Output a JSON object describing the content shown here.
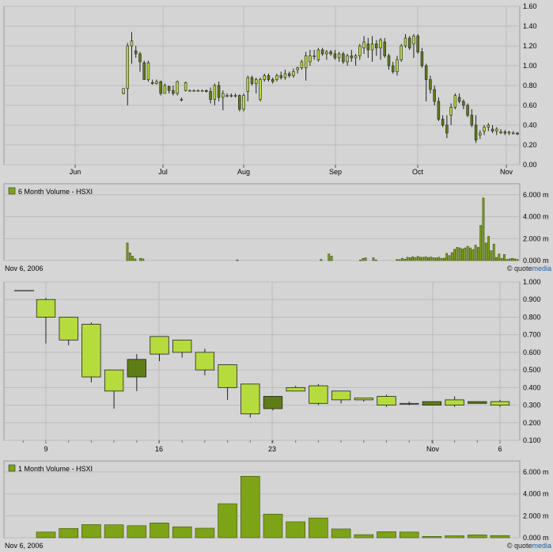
{
  "colors": {
    "background": "#d6d6d6",
    "plot_bg": "#d4d4d4",
    "grid": "#bcbcbc",
    "candle_up": "#b5dc3c",
    "candle_down": "#5f7d16",
    "volume": "#7da416"
  },
  "branding": {
    "quotemedia_prefix": "quote",
    "quotemedia_suffix": "media"
  },
  "chart_data": [
    {
      "type": "candlestick",
      "panel": "6-month price",
      "ylim": [
        0,
        1.6
      ],
      "yticks": [
        "1.60",
        "1.40",
        "1.20",
        "1.00",
        "0.80",
        "0.60",
        "0.40",
        "0.20",
        "0.00"
      ],
      "xticks": [
        "Jun",
        "Jul",
        "Aug",
        "Sep",
        "Oct",
        "Nov"
      ],
      "grid": true,
      "candles": [
        [
          0.72,
          0.77,
          0.71,
          0.77
        ],
        [
          0.77,
          1.23,
          0.6,
          1.2
        ],
        [
          1.2,
          1.34,
          1.02,
          1.25
        ],
        [
          1.15,
          1.2,
          1.08,
          1.12
        ],
        [
          1.12,
          1.14,
          0.94,
          1.04
        ],
        [
          1.03,
          1.05,
          0.86,
          0.86
        ],
        [
          0.86,
          1.05,
          0.84,
          1.03
        ],
        [
          0.83,
          0.86,
          0.81,
          0.82
        ],
        [
          0.82,
          0.86,
          0.81,
          0.84
        ],
        [
          0.84,
          0.85,
          0.7,
          0.72
        ],
        [
          0.72,
          0.82,
          0.72,
          0.8
        ],
        [
          0.79,
          0.8,
          0.72,
          0.75
        ],
        [
          0.75,
          0.8,
          0.7,
          0.72
        ],
        [
          0.72,
          0.85,
          0.7,
          0.84
        ],
        [
          0.66,
          0.68,
          0.64,
          0.66
        ],
        [
          0.75,
          0.84,
          0.74,
          0.83
        ],
        [
          0.75,
          0.76,
          0.74,
          0.75
        ],
        [
          0.75,
          0.76,
          0.74,
          0.75
        ],
        [
          0.75,
          0.76,
          0.74,
          0.75
        ],
        [
          0.75,
          0.76,
          0.74,
          0.75
        ],
        [
          0.75,
          0.76,
          0.73,
          0.74
        ],
        [
          0.74,
          0.78,
          0.62,
          0.66
        ],
        [
          0.66,
          0.82,
          0.6,
          0.8
        ],
        [
          0.8,
          0.84,
          0.64,
          0.68
        ],
        [
          0.68,
          0.75,
          0.55,
          0.72
        ],
        [
          0.7,
          0.72,
          0.68,
          0.7
        ],
        [
          0.7,
          0.72,
          0.68,
          0.7
        ],
        [
          0.7,
          0.72,
          0.68,
          0.7
        ],
        [
          0.7,
          0.71,
          0.54,
          0.56
        ],
        [
          0.56,
          0.72,
          0.54,
          0.7
        ],
        [
          0.74,
          0.9,
          0.64,
          0.88
        ],
        [
          0.88,
          0.9,
          0.8,
          0.82
        ],
        [
          0.82,
          0.88,
          0.72,
          0.86
        ],
        [
          0.66,
          0.88,
          0.64,
          0.86
        ],
        [
          0.86,
          0.92,
          0.84,
          0.9
        ],
        [
          0.9,
          0.92,
          0.84,
          0.86
        ],
        [
          0.86,
          0.88,
          0.82,
          0.84
        ],
        [
          0.86,
          0.92,
          0.84,
          0.9
        ],
        [
          0.9,
          0.94,
          0.86,
          0.88
        ],
        [
          0.88,
          0.96,
          0.86,
          0.92
        ],
        [
          0.92,
          0.94,
          0.88,
          0.9
        ],
        [
          0.9,
          0.97,
          0.88,
          0.94
        ],
        [
          0.96,
          0.99,
          0.92,
          0.98
        ],
        [
          0.98,
          1.06,
          0.96,
          1.04
        ],
        [
          0.98,
          1.14,
          0.85,
          1.1
        ],
        [
          1.04,
          1.16,
          1.0,
          1.1
        ],
        [
          1.1,
          1.16,
          1.06,
          1.1
        ],
        [
          1.06,
          1.18,
          1.04,
          1.16
        ],
        [
          1.16,
          1.18,
          1.1,
          1.12
        ],
        [
          1.12,
          1.16,
          1.06,
          1.14
        ],
        [
          1.14,
          1.16,
          1.1,
          1.12
        ],
        [
          1.12,
          1.16,
          1.06,
          1.08
        ],
        [
          1.08,
          1.14,
          1.04,
          1.12
        ],
        [
          1.12,
          1.14,
          1.02,
          1.04
        ],
        [
          1.04,
          1.12,
          1.0,
          1.1
        ],
        [
          1.1,
          1.16,
          1.04,
          1.08
        ],
        [
          1.08,
          1.12,
          1.0,
          1.1
        ],
        [
          1.1,
          1.22,
          1.06,
          1.2
        ],
        [
          1.18,
          1.3,
          1.12,
          1.24
        ],
        [
          1.22,
          1.28,
          1.08,
          1.16
        ],
        [
          1.16,
          1.3,
          1.04,
          1.22
        ],
        [
          1.22,
          1.26,
          1.1,
          1.18
        ],
        [
          1.18,
          1.28,
          1.06,
          1.26
        ],
        [
          1.24,
          1.28,
          1.08,
          1.1
        ],
        [
          1.1,
          1.12,
          0.96,
          1.0
        ],
        [
          1.0,
          1.04,
          0.92,
          0.94
        ],
        [
          0.94,
          1.1,
          0.9,
          1.06
        ],
        [
          1.06,
          1.22,
          1.04,
          1.2
        ],
        [
          1.2,
          1.32,
          1.18,
          1.28
        ],
        [
          1.28,
          1.3,
          1.16,
          1.18
        ],
        [
          1.22,
          1.32,
          1.08,
          1.3
        ],
        [
          1.3,
          1.32,
          1.12,
          1.14
        ],
        [
          1.14,
          1.18,
          0.98,
          1.0
        ],
        [
          1.0,
          1.02,
          0.64,
          0.86
        ],
        [
          0.86,
          0.9,
          0.72,
          0.76
        ],
        [
          0.76,
          0.8,
          0.6,
          0.64
        ],
        [
          0.64,
          0.68,
          0.44,
          0.46
        ],
        [
          0.46,
          0.5,
          0.38,
          0.4
        ],
        [
          0.4,
          0.5,
          0.27,
          0.32
        ],
        [
          0.5,
          0.62,
          0.4,
          0.58
        ],
        [
          0.58,
          0.72,
          0.56,
          0.7
        ],
        [
          0.68,
          0.72,
          0.62,
          0.64
        ],
        [
          0.64,
          0.66,
          0.56,
          0.6
        ],
        [
          0.6,
          0.62,
          0.48,
          0.5
        ],
        [
          0.5,
          0.56,
          0.38,
          0.4
        ],
        [
          0.4,
          0.5,
          0.22,
          0.25
        ],
        [
          0.3,
          0.35,
          0.26,
          0.32
        ],
        [
          0.34,
          0.4,
          0.3,
          0.38
        ],
        [
          0.38,
          0.42,
          0.34,
          0.4
        ],
        [
          0.36,
          0.4,
          0.32,
          0.34
        ],
        [
          0.34,
          0.38,
          0.3,
          0.36
        ],
        [
          0.33,
          0.36,
          0.31,
          0.33
        ],
        [
          0.33,
          0.35,
          0.3,
          0.32
        ],
        [
          0.32,
          0.34,
          0.3,
          0.33
        ],
        [
          0.32,
          0.34,
          0.31,
          0.32
        ],
        [
          0.32,
          0.33,
          0.3,
          0.31
        ]
      ]
    },
    {
      "type": "bar",
      "panel": "6-month volume",
      "title": "6 Month Volume - HSXI",
      "date_label": "Nov 6, 2006",
      "ylim": [
        0,
        7000
      ],
      "yticks": [
        "6.000 m",
        "4.000 m",
        "2.000 m",
        "0.000 m"
      ],
      "values": [
        1600,
        700,
        400,
        150,
        0,
        200,
        150,
        0,
        0,
        0,
        0,
        0,
        0,
        0,
        0,
        0,
        0,
        0,
        0,
        0,
        0,
        0,
        0,
        0,
        0,
        0,
        0,
        0,
        0,
        0,
        0,
        0,
        0,
        0,
        0,
        0,
        0,
        0,
        0,
        0,
        0,
        0,
        60,
        0,
        0,
        0,
        0,
        0,
        0,
        0,
        0,
        0,
        0,
        0,
        0,
        0,
        0,
        0,
        0,
        0,
        0,
        0,
        0,
        0,
        0,
        0,
        0,
        0,
        0,
        0,
        0,
        0,
        0,
        0,
        100,
        0,
        0,
        600,
        400,
        0,
        0,
        0,
        0,
        0,
        0,
        0,
        0,
        0,
        0,
        50,
        200,
        250,
        0,
        0,
        250,
        50,
        0,
        0,
        0,
        0,
        0,
        0,
        0,
        100,
        80,
        200,
        120,
        300,
        260,
        350,
        280,
        380,
        300,
        300,
        350,
        280,
        320,
        260,
        240,
        300,
        200,
        220,
        650,
        450,
        720,
        1020,
        1200,
        1150,
        1050,
        1150,
        1300,
        1150,
        1000,
        1400,
        1200,
        3200,
        5700,
        1600,
        2200,
        900,
        1500,
        280,
        600,
        200,
        550,
        100,
        150,
        200,
        150,
        100
      ]
    },
    {
      "type": "candlestick",
      "panel": "1-month price",
      "ylim": [
        0.1,
        1.0
      ],
      "yticks": [
        "1.000",
        "0.900",
        "0.800",
        "0.700",
        "0.600",
        "0.500",
        "0.400",
        "0.300",
        "0.200",
        "0.100"
      ],
      "xticks": [
        "9",
        "16",
        "23",
        "Nov",
        "6"
      ],
      "grid": true,
      "candles": [
        [
          0.8,
          0.91,
          0.65,
          0.9
        ],
        [
          0.67,
          0.8,
          0.64,
          0.8
        ],
        [
          0.46,
          0.77,
          0.43,
          0.76
        ],
        [
          0.38,
          0.5,
          0.28,
          0.5
        ],
        [
          0.56,
          0.59,
          0.38,
          0.46
        ],
        [
          0.59,
          0.69,
          0.55,
          0.69
        ],
        [
          0.6,
          0.67,
          0.57,
          0.67
        ],
        [
          0.5,
          0.62,
          0.47,
          0.6
        ],
        [
          0.4,
          0.53,
          0.33,
          0.53
        ],
        [
          0.25,
          0.42,
          0.23,
          0.42
        ],
        [
          0.35,
          0.35,
          0.27,
          0.28
        ],
        [
          0.38,
          0.41,
          0.38,
          0.4
        ],
        [
          0.31,
          0.42,
          0.3,
          0.41
        ],
        [
          0.33,
          0.38,
          0.31,
          0.38
        ],
        [
          0.33,
          0.34,
          0.32,
          0.34
        ],
        [
          0.3,
          0.36,
          0.29,
          0.35
        ],
        [
          0.31,
          0.32,
          0.3,
          0.31
        ],
        [
          0.32,
          0.32,
          0.3,
          0.3
        ],
        [
          0.3,
          0.35,
          0.29,
          0.33
        ],
        [
          0.32,
          0.32,
          0.31,
          0.31
        ],
        [
          0.3,
          0.33,
          0.29,
          0.32
        ]
      ]
    },
    {
      "type": "bar",
      "panel": "1-month volume",
      "title": "1 Month Volume - HSXI",
      "date_label": "Nov 6, 2006",
      "ylim": [
        0,
        7000
      ],
      "yticks": [
        "6.000 m",
        "4.000 m",
        "2.000 m",
        "0.000 m"
      ],
      "values": [
        520,
        850,
        1200,
        1180,
        1100,
        1350,
        1000,
        870,
        3100,
        5600,
        2150,
        1450,
        1800,
        800,
        280,
        550,
        520,
        120,
        180,
        260,
        200
      ]
    }
  ]
}
